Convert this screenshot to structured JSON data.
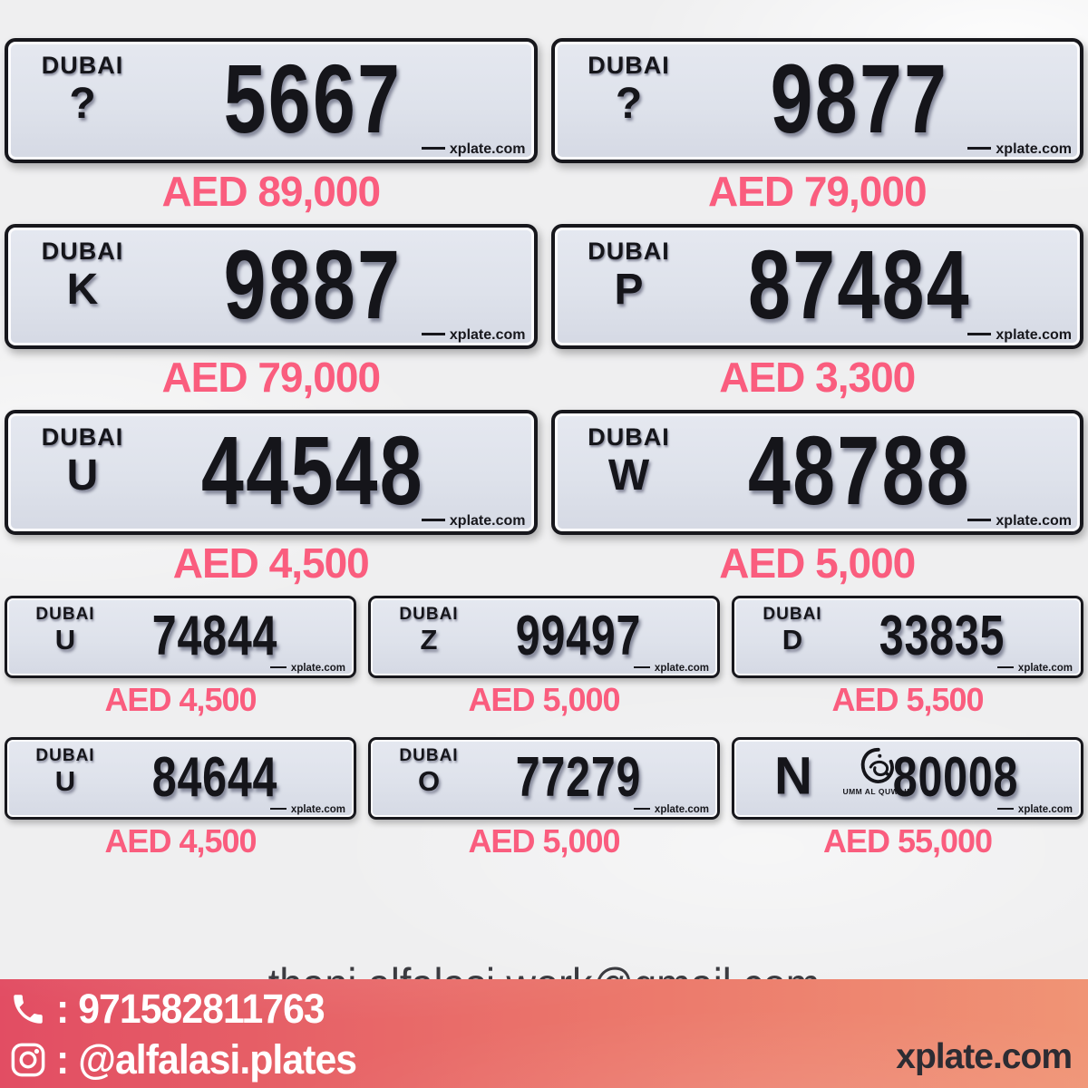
{
  "colors": {
    "price": "#fa5d7e",
    "plate_background": "#dee2eb",
    "page_background": "#efeff0",
    "footer_gradient_start": "#e24d63",
    "footer_gradient_end": "#f09475",
    "footer_text": "#ffffff",
    "brand_text": "#2c2c33"
  },
  "rows": [
    {
      "size": "large",
      "plates": [
        {
          "emirate": "DUBAI",
          "letter": "?",
          "number": "5667",
          "price": "AED 89,000",
          "watermark": "xplate.com"
        },
        {
          "emirate": "DUBAI",
          "letter": "?",
          "number": "9877",
          "price": "AED 79,000",
          "watermark": "xplate.com"
        }
      ]
    },
    {
      "size": "large",
      "plates": [
        {
          "emirate": "DUBAI",
          "letter": "K",
          "number": "9887",
          "price": "AED 79,000",
          "watermark": "xplate.com"
        },
        {
          "emirate": "DUBAI",
          "letter": "P",
          "number": "87484",
          "price": "AED 3,300",
          "watermark": "xplate.com"
        }
      ]
    },
    {
      "size": "large",
      "plates": [
        {
          "emirate": "DUBAI",
          "letter": "U",
          "number": "44548",
          "price": "AED 4,500",
          "watermark": "xplate.com"
        },
        {
          "emirate": "DUBAI",
          "letter": "W",
          "number": "48788",
          "price": "AED 5,000",
          "watermark": "xplate.com"
        }
      ]
    },
    {
      "size": "small",
      "plates": [
        {
          "emirate": "DUBAI",
          "letter": "U",
          "number": "74844",
          "price": "AED 4,500",
          "watermark": "xplate.com"
        },
        {
          "emirate": "DUBAI",
          "letter": "Z",
          "number": "99497",
          "price": "AED 5,000",
          "watermark": "xplate.com"
        },
        {
          "emirate": "DUBAI",
          "letter": "D",
          "number": "33835",
          "price": "AED 5,500",
          "watermark": "xplate.com"
        }
      ]
    },
    {
      "size": "small",
      "plates": [
        {
          "emirate": "DUBAI",
          "letter": "U",
          "number": "84644",
          "price": "AED 4,500",
          "watermark": "xplate.com"
        },
        {
          "emirate": "DUBAI",
          "letter": "O",
          "number": "77279",
          "price": "AED 5,000",
          "watermark": "xplate.com"
        },
        {
          "letter": "N",
          "number": "80008",
          "price": "AED 55,000",
          "watermark": "xplate.com",
          "emblem": "umm-al-quwain-emblem",
          "emblem_label": "UMM AL QUWAIN"
        }
      ]
    }
  ],
  "contact": {
    "email": "thani.alfalasi.work@gmail.com",
    "phone": ": 971582811763",
    "instagram": ": @alfalasi.plates",
    "brand": "xplate.com"
  }
}
